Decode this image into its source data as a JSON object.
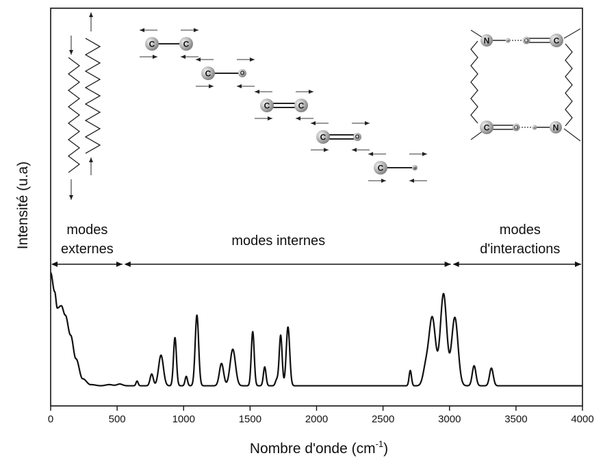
{
  "chart_data": {
    "type": "line",
    "title": "",
    "xlabel": "Nombre d'onde (cm",
    "xlabel_sup": "-1",
    "xlabel_close": ")",
    "ylabel": "Intensité (u.a)",
    "xlim": [
      0,
      4000
    ],
    "ylim": [
      0,
      1
    ],
    "y_ticks_shown": false,
    "grid": false,
    "x_ticks": [
      0,
      500,
      1000,
      1500,
      2000,
      2500,
      3000,
      3500,
      4000
    ],
    "x_tick_labels": [
      "0",
      "500",
      "1000",
      "1500",
      "2000",
      "2500",
      "3000",
      "3500",
      "4000"
    ],
    "regions": [
      {
        "label_lines": [
          "modes",
          "externes"
        ],
        "x_range": [
          0,
          550
        ]
      },
      {
        "label_lines": [
          "modes internes"
        ],
        "x_range": [
          550,
          3020
        ]
      },
      {
        "label_lines": [
          "modes",
          "d'interactions"
        ],
        "x_range": [
          3020,
          4000
        ]
      }
    ],
    "series": [
      {
        "color": "#111111",
        "baseline": 0.02,
        "low_frequency_decay": [
          {
            "x": 0,
            "y": 0.98
          },
          {
            "x": 30,
            "y": 0.82
          },
          {
            "x": 50,
            "y": 0.68
          },
          {
            "x": 80,
            "y": 0.7
          },
          {
            "x": 110,
            "y": 0.62
          },
          {
            "x": 150,
            "y": 0.45
          },
          {
            "x": 190,
            "y": 0.25
          },
          {
            "x": 240,
            "y": 0.08
          },
          {
            "x": 300,
            "y": 0.03
          },
          {
            "x": 380,
            "y": 0.02
          }
        ],
        "peaks": [
          {
            "x": 440,
            "y": 0.01,
            "width": 25
          },
          {
            "x": 520,
            "y": 0.015,
            "width": 20
          },
          {
            "x": 650,
            "y": 0.04,
            "width": 8
          },
          {
            "x": 760,
            "y": 0.1,
            "width": 12
          },
          {
            "x": 830,
            "y": 0.26,
            "width": 18
          },
          {
            "x": 935,
            "y": 0.41,
            "width": 11
          },
          {
            "x": 1020,
            "y": 0.08,
            "width": 9
          },
          {
            "x": 1100,
            "y": 0.6,
            "width": 13
          },
          {
            "x": 1285,
            "y": 0.19,
            "width": 16
          },
          {
            "x": 1370,
            "y": 0.31,
            "width": 20
          },
          {
            "x": 1520,
            "y": 0.46,
            "width": 11
          },
          {
            "x": 1610,
            "y": 0.16,
            "width": 10
          },
          {
            "x": 1700,
            "y": 0.05,
            "width": 10
          },
          {
            "x": 1730,
            "y": 0.43,
            "width": 11
          },
          {
            "x": 1785,
            "y": 0.5,
            "width": 13
          },
          {
            "x": 2705,
            "y": 0.13,
            "width": 9
          },
          {
            "x": 2820,
            "y": 0.14,
            "width": 20
          },
          {
            "x": 2870,
            "y": 0.58,
            "width": 25
          },
          {
            "x": 2955,
            "y": 0.78,
            "width": 24
          },
          {
            "x": 3040,
            "y": 0.58,
            "width": 24
          },
          {
            "x": 3185,
            "y": 0.17,
            "width": 14
          },
          {
            "x": 3315,
            "y": 0.15,
            "width": 14
          }
        ]
      }
    ]
  },
  "diagrams": {
    "molecules": [
      {
        "atoms": [
          "C",
          "C"
        ],
        "bond": "single"
      },
      {
        "atoms": [
          "C",
          "O"
        ],
        "bond": "single"
      },
      {
        "atoms": [
          "C",
          "C"
        ],
        "bond": "double"
      },
      {
        "atoms": [
          "C",
          "O"
        ],
        "bond": "double"
      },
      {
        "atoms": [
          "C",
          "H"
        ],
        "bond": "single"
      }
    ],
    "interaction_top_atoms": [
      "N",
      "H",
      "O",
      "C"
    ],
    "interaction_bottom_atoms": [
      "C",
      "O",
      "H",
      "N"
    ]
  }
}
